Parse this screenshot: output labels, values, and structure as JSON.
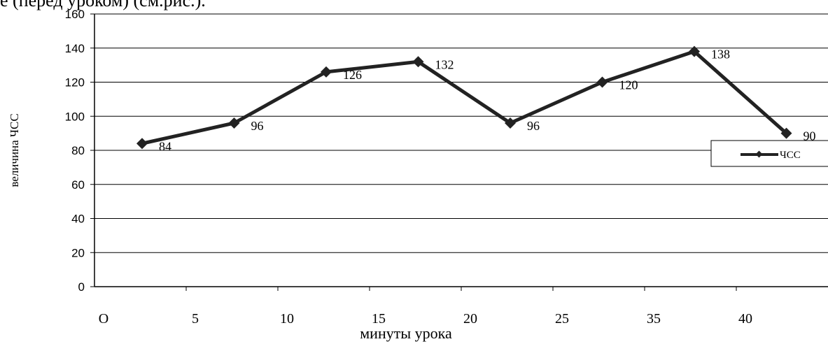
{
  "caption": "е (перед уроком) (см.рис.).",
  "chart_data": {
    "type": "line",
    "title": "",
    "xlabel": "минуты урока",
    "ylabel": "величина ЧСС",
    "categories": [
      "О",
      "5",
      "10",
      "15",
      "20",
      "25",
      "35",
      "40"
    ],
    "ylim": [
      0,
      160
    ],
    "yticks": [
      0,
      20,
      40,
      60,
      80,
      100,
      120,
      140,
      160
    ],
    "grid": true,
    "legend_position": "right",
    "series": [
      {
        "name": "ЧСС",
        "values": [
          84,
          96,
          126,
          132,
          96,
          120,
          138,
          90
        ],
        "data_labels": [
          "84",
          "96",
          "126",
          "132",
          "96",
          "120",
          "138",
          "90"
        ],
        "color": "#222222"
      }
    ]
  }
}
